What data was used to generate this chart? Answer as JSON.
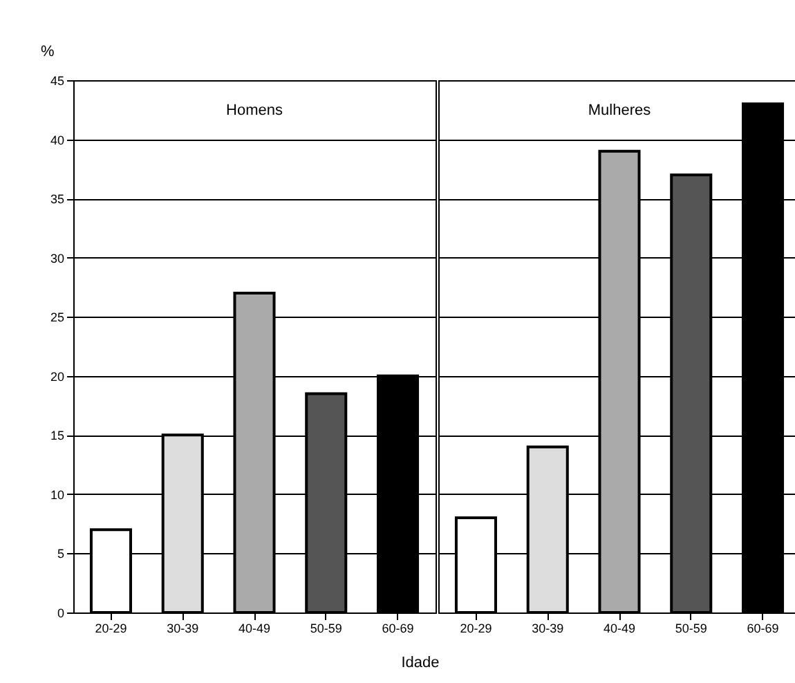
{
  "chart_data": [
    {
      "type": "bar",
      "title": "Homens",
      "xlabel": "Idade",
      "ylabel": "%",
      "categories": [
        "20-29",
        "30-39",
        "40-49",
        "50-59",
        "60-69"
      ],
      "values": [
        7,
        15,
        27,
        18.5,
        20
      ],
      "colors": [
        "#ffffff",
        "#dddddd",
        "#aaaaaa",
        "#555555",
        "#000000"
      ],
      "ylim": [
        0,
        45
      ],
      "yticks": [
        0,
        5,
        10,
        15,
        20,
        25,
        30,
        35,
        40,
        45
      ],
      "grid": "y"
    },
    {
      "type": "bar",
      "title": "Mulheres",
      "categories": [
        "20-29",
        "30-39",
        "40-49",
        "50-59",
        "60-69"
      ],
      "values": [
        8,
        14,
        39,
        37,
        43
      ],
      "colors": [
        "#ffffff",
        "#dddddd",
        "#aaaaaa",
        "#555555",
        "#000000"
      ],
      "ylim": [
        0,
        45
      ],
      "yticks": [
        0,
        5,
        10,
        15,
        20,
        25,
        30,
        35,
        40,
        45
      ],
      "grid": "y",
      "tick_labels": "x"
    }
  ]
}
